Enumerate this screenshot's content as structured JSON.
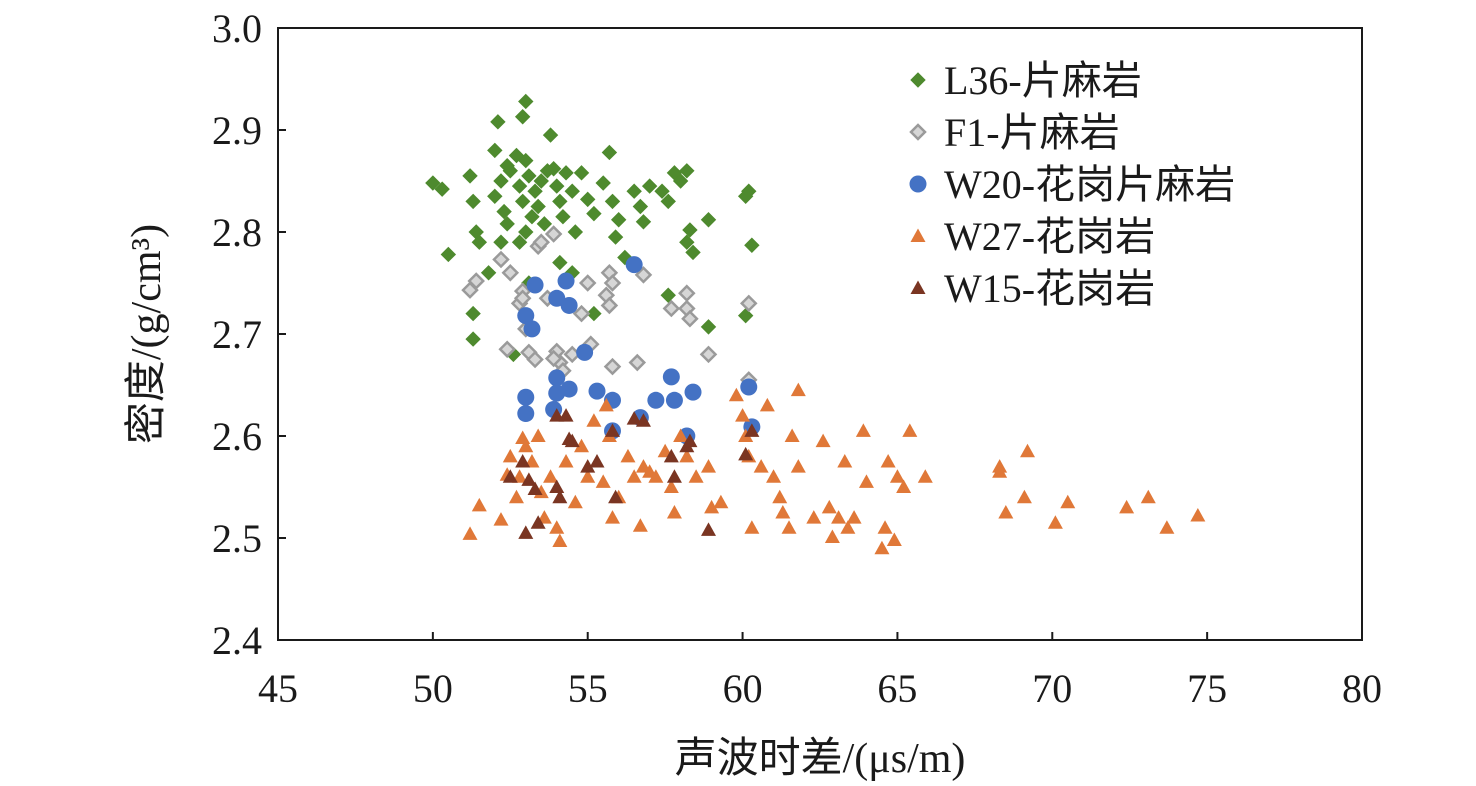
{
  "chart_data": {
    "type": "scatter",
    "title": "",
    "xlabel": "声波时差/(μs/m)",
    "ylabel": "密度/(g/cm³)",
    "xlim": [
      45,
      80
    ],
    "ylim": [
      2.4,
      3.0
    ],
    "xticks": [
      "45",
      "50",
      "55",
      "60",
      "65",
      "70",
      "75",
      "80"
    ],
    "yticks": [
      "2.4",
      "2.5",
      "2.6",
      "2.7",
      "2.8",
      "2.9",
      "3.0"
    ],
    "grid": false,
    "legend_position": "top-right",
    "series": [
      {
        "name": "L36-片麻岩",
        "marker": "diamond",
        "color": "#4e8a2e",
        "points": [
          [
            50.0,
            2.848
          ],
          [
            50.3,
            2.842
          ],
          [
            50.5,
            2.778
          ],
          [
            51.2,
            2.855
          ],
          [
            51.3,
            2.83
          ],
          [
            51.4,
            2.8
          ],
          [
            51.3,
            2.72
          ],
          [
            51.3,
            2.695
          ],
          [
            51.5,
            2.79
          ],
          [
            51.8,
            2.76
          ],
          [
            52.0,
            2.88
          ],
          [
            52.1,
            2.908
          ],
          [
            52.2,
            2.85
          ],
          [
            52.0,
            2.835
          ],
          [
            52.3,
            2.82
          ],
          [
            52.4,
            2.808
          ],
          [
            52.2,
            2.79
          ],
          [
            52.5,
            2.86
          ],
          [
            52.7,
            2.875
          ],
          [
            52.8,
            2.845
          ],
          [
            53.0,
            2.928
          ],
          [
            52.9,
            2.913
          ],
          [
            53.0,
            2.87
          ],
          [
            53.1,
            2.855
          ],
          [
            52.9,
            2.83
          ],
          [
            53.2,
            2.815
          ],
          [
            53.0,
            2.8
          ],
          [
            52.8,
            2.79
          ],
          [
            53.3,
            2.84
          ],
          [
            53.4,
            2.825
          ],
          [
            53.5,
            2.85
          ],
          [
            53.6,
            2.808
          ],
          [
            53.8,
            2.895
          ],
          [
            53.9,
            2.862
          ],
          [
            54.0,
            2.845
          ],
          [
            54.1,
            2.83
          ],
          [
            54.2,
            2.815
          ],
          [
            54.3,
            2.858
          ],
          [
            54.5,
            2.84
          ],
          [
            54.6,
            2.8
          ],
          [
            54.8,
            2.858
          ],
          [
            55.0,
            2.832
          ],
          [
            55.2,
            2.818
          ],
          [
            55.5,
            2.848
          ],
          [
            55.7,
            2.878
          ],
          [
            55.8,
            2.83
          ],
          [
            56.0,
            2.812
          ],
          [
            55.9,
            2.795
          ],
          [
            56.2,
            2.775
          ],
          [
            56.5,
            2.84
          ],
          [
            56.7,
            2.825
          ],
          [
            56.8,
            2.81
          ],
          [
            57.0,
            2.845
          ],
          [
            57.4,
            2.84
          ],
          [
            57.6,
            2.83
          ],
          [
            57.8,
            2.858
          ],
          [
            58.0,
            2.85
          ],
          [
            58.2,
            2.86
          ],
          [
            58.3,
            2.802
          ],
          [
            58.2,
            2.79
          ],
          [
            58.4,
            2.78
          ],
          [
            58.9,
            2.812
          ],
          [
            58.9,
            2.707
          ],
          [
            60.1,
            2.835
          ],
          [
            60.2,
            2.84
          ],
          [
            60.3,
            2.787
          ],
          [
            60.1,
            2.718
          ],
          [
            53.1,
            2.75
          ],
          [
            54.1,
            2.77
          ],
          [
            55.2,
            2.72
          ],
          [
            52.6,
            2.68
          ],
          [
            54.5,
            2.76
          ],
          [
            57.6,
            2.738
          ],
          [
            53.7,
            2.86
          ],
          [
            52.4,
            2.865
          ]
        ]
      },
      {
        "name": "F1-片麻岩",
        "marker": "diamond",
        "color": "#b0b0b0",
        "points": [
          [
            51.2,
            2.743
          ],
          [
            51.4,
            2.752
          ],
          [
            52.2,
            2.773
          ],
          [
            52.5,
            2.76
          ],
          [
            52.8,
            2.73
          ],
          [
            52.9,
            2.742
          ],
          [
            53.0,
            2.705
          ],
          [
            53.1,
            2.682
          ],
          [
            53.3,
            2.675
          ],
          [
            53.4,
            2.786
          ],
          [
            53.5,
            2.79
          ],
          [
            53.7,
            2.735
          ],
          [
            53.9,
            2.798
          ],
          [
            54.0,
            2.683
          ],
          [
            54.1,
            2.672
          ],
          [
            54.2,
            2.664
          ],
          [
            54.5,
            2.68
          ],
          [
            54.8,
            2.72
          ],
          [
            55.0,
            2.75
          ],
          [
            55.1,
            2.69
          ],
          [
            55.6,
            2.738
          ],
          [
            55.7,
            2.728
          ],
          [
            55.7,
            2.76
          ],
          [
            55.8,
            2.75
          ],
          [
            55.8,
            2.668
          ],
          [
            56.6,
            2.672
          ],
          [
            56.8,
            2.758
          ],
          [
            57.7,
            2.725
          ],
          [
            58.2,
            2.725
          ],
          [
            58.3,
            2.715
          ],
          [
            58.2,
            2.74
          ],
          [
            58.9,
            2.68
          ],
          [
            60.2,
            2.73
          ],
          [
            60.2,
            2.655
          ],
          [
            52.4,
            2.685
          ],
          [
            53.9,
            2.676
          ],
          [
            52.9,
            2.735
          ]
        ]
      },
      {
        "name": "W20-花岗片麻岩",
        "marker": "circle",
        "color": "#4472c4",
        "points": [
          [
            53.0,
            2.718
          ],
          [
            53.2,
            2.705
          ],
          [
            53.3,
            2.748
          ],
          [
            54.0,
            2.735
          ],
          [
            54.3,
            2.752
          ],
          [
            54.4,
            2.728
          ],
          [
            54.9,
            2.682
          ],
          [
            53.0,
            2.638
          ],
          [
            53.0,
            2.622
          ],
          [
            54.0,
            2.657
          ],
          [
            54.0,
            2.642
          ],
          [
            54.4,
            2.646
          ],
          [
            53.9,
            2.626
          ],
          [
            55.3,
            2.644
          ],
          [
            55.8,
            2.635
          ],
          [
            55.8,
            2.605
          ],
          [
            56.5,
            2.768
          ],
          [
            56.7,
            2.618
          ],
          [
            57.2,
            2.635
          ],
          [
            57.7,
            2.658
          ],
          [
            57.8,
            2.635
          ],
          [
            58.2,
            2.6
          ],
          [
            58.4,
            2.643
          ],
          [
            60.2,
            2.648
          ],
          [
            60.3,
            2.609
          ]
        ]
      },
      {
        "name": "W27-花岗岩",
        "marker": "triangle",
        "color": "#e07838",
        "points": [
          [
            51.2,
            2.504
          ],
          [
            51.5,
            2.532
          ],
          [
            52.2,
            2.518
          ],
          [
            52.4,
            2.562
          ],
          [
            52.5,
            2.58
          ],
          [
            52.7,
            2.54
          ],
          [
            52.8,
            2.56
          ],
          [
            52.9,
            2.598
          ],
          [
            53.0,
            2.59
          ],
          [
            53.2,
            2.575
          ],
          [
            53.4,
            2.6
          ],
          [
            53.5,
            2.545
          ],
          [
            53.6,
            2.52
          ],
          [
            53.8,
            2.56
          ],
          [
            54.0,
            2.51
          ],
          [
            54.1,
            2.497
          ],
          [
            54.3,
            2.575
          ],
          [
            54.6,
            2.535
          ],
          [
            54.8,
            2.59
          ],
          [
            55.0,
            2.56
          ],
          [
            55.2,
            2.615
          ],
          [
            55.5,
            2.555
          ],
          [
            55.6,
            2.63
          ],
          [
            55.7,
            2.6
          ],
          [
            55.8,
            2.52
          ],
          [
            56.0,
            2.54
          ],
          [
            56.3,
            2.58
          ],
          [
            56.5,
            2.56
          ],
          [
            56.7,
            2.512
          ],
          [
            56.8,
            2.57
          ],
          [
            57.0,
            2.565
          ],
          [
            57.2,
            2.56
          ],
          [
            57.5,
            2.585
          ],
          [
            57.7,
            2.55
          ],
          [
            57.8,
            2.525
          ],
          [
            58.0,
            2.6
          ],
          [
            58.2,
            2.58
          ],
          [
            58.5,
            2.56
          ],
          [
            58.9,
            2.57
          ],
          [
            59.0,
            2.53
          ],
          [
            59.3,
            2.535
          ],
          [
            59.8,
            2.64
          ],
          [
            60.0,
            2.62
          ],
          [
            60.1,
            2.6
          ],
          [
            60.2,
            2.58
          ],
          [
            60.3,
            2.51
          ],
          [
            60.6,
            2.57
          ],
          [
            60.8,
            2.63
          ],
          [
            61.0,
            2.56
          ],
          [
            61.2,
            2.54
          ],
          [
            61.3,
            2.525
          ],
          [
            61.5,
            2.51
          ],
          [
            61.6,
            2.6
          ],
          [
            61.8,
            2.57
          ],
          [
            61.8,
            2.645
          ],
          [
            62.3,
            2.52
          ],
          [
            62.6,
            2.595
          ],
          [
            62.8,
            2.53
          ],
          [
            62.9,
            2.501
          ],
          [
            63.1,
            2.52
          ],
          [
            63.3,
            2.575
          ],
          [
            63.4,
            2.51
          ],
          [
            63.6,
            2.52
          ],
          [
            63.9,
            2.605
          ],
          [
            64.0,
            2.555
          ],
          [
            64.5,
            2.49
          ],
          [
            64.6,
            2.51
          ],
          [
            64.7,
            2.575
          ],
          [
            64.9,
            2.498
          ],
          [
            65.0,
            2.56
          ],
          [
            65.2,
            2.55
          ],
          [
            65.4,
            2.605
          ],
          [
            65.9,
            2.56
          ],
          [
            68.3,
            2.57
          ],
          [
            68.3,
            2.565
          ],
          [
            68.5,
            2.525
          ],
          [
            69.1,
            2.54
          ],
          [
            69.2,
            2.585
          ],
          [
            70.1,
            2.515
          ],
          [
            70.5,
            2.535
          ],
          [
            72.4,
            2.53
          ],
          [
            73.1,
            2.54
          ],
          [
            73.7,
            2.51
          ],
          [
            74.7,
            2.522
          ]
        ]
      },
      {
        "name": "W15-花岗岩",
        "marker": "triangle",
        "color": "#7a3522",
        "points": [
          [
            52.5,
            2.56
          ],
          [
            52.9,
            2.575
          ],
          [
            53.0,
            2.505
          ],
          [
            53.1,
            2.557
          ],
          [
            53.3,
            2.548
          ],
          [
            53.4,
            2.515
          ],
          [
            54.0,
            2.55
          ],
          [
            54.0,
            2.62
          ],
          [
            54.1,
            2.54
          ],
          [
            54.3,
            2.62
          ],
          [
            54.4,
            2.597
          ],
          [
            55.0,
            2.57
          ],
          [
            55.3,
            2.575
          ],
          [
            55.8,
            2.605
          ],
          [
            55.9,
            2.54
          ],
          [
            56.5,
            2.617
          ],
          [
            56.8,
            2.615
          ],
          [
            57.7,
            2.58
          ],
          [
            58.2,
            2.59
          ],
          [
            58.3,
            2.595
          ],
          [
            58.9,
            2.508
          ],
          [
            60.1,
            2.582
          ],
          [
            60.3,
            2.605
          ],
          [
            57.8,
            2.56
          ],
          [
            54.5,
            2.595
          ]
        ]
      }
    ]
  }
}
